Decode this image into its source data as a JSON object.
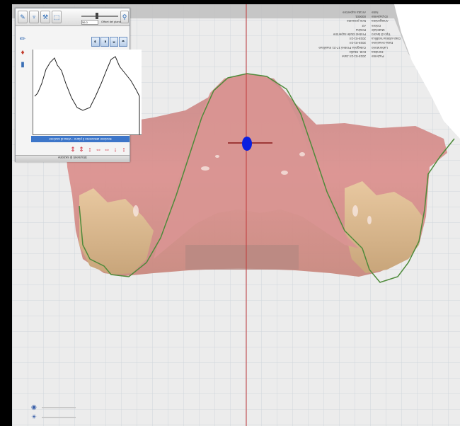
{
  "app": {
    "view": "3d-viewport",
    "colors": {
      "background": "#ececec",
      "grid": "#cfd6dc",
      "axis": "#c0393a",
      "gum": "#d98a88",
      "margin_line": "#4e8a3a",
      "marker": "#0a1fe0",
      "accent": "#3d76c9"
    }
  },
  "info_panel": {
    "rows": [
      {
        "k": "Paziente",
        "v": "2015-01-24 Jane"
      },
      {
        "k": "Dentista",
        "v": "Dott. Studio"
      },
      {
        "k": "Laboratorio",
        "v": "Categoria Protesi 17-21 maxillare"
      },
      {
        "k": "Data creazione",
        "v": "2015-01-24"
      },
      {
        "k": "Data ultima modifica",
        "v": "2015-01-24"
      },
      {
        "k": "Tipo di lavoro",
        "v": "Protesi totale superiore"
      },
      {
        "k": "Materiale",
        "v": "Resina"
      },
      {
        "k": "Colore",
        "v": "A2"
      },
      {
        "k": "Antagonista",
        "v": "Non presente"
      },
      {
        "k": "ID paziente",
        "v": "000001"
      },
      {
        "k": "Note",
        "v": "Arcata superiore"
      }
    ]
  },
  "tool_panel": {
    "top_buttons": [
      {
        "name": "measure-tool-icon",
        "glyph": "✎"
      },
      {
        "name": "tooth-tool-icon",
        "glyph": "♆"
      },
      {
        "name": "knife-tool-icon",
        "glyph": "⚒"
      },
      {
        "name": "shape-tool-icon",
        "glyph": "⬚"
      },
      {
        "name": "figure-tool-icon",
        "glyph": "⚲"
      }
    ],
    "slider": {
      "value": "56.0",
      "label": "Offset del piano",
      "position": 0.42
    },
    "mode_buttons": [
      {
        "name": "mode-front-icon",
        "glyph": "◐"
      },
      {
        "name": "mode-side-icon",
        "glyph": "◑"
      },
      {
        "name": "mode-top-icon",
        "glyph": "◒"
      },
      {
        "name": "mode-bottom-icon",
        "glyph": "◓"
      }
    ],
    "side_tools": [
      {
        "name": "pencil-icon",
        "glyph": "✏"
      },
      {
        "name": "brush-icon",
        "glyph": "♦"
      },
      {
        "name": "eraser-icon",
        "glyph": "▮"
      }
    ],
    "section_label": "Sezione attraverso il piano - Vista di sezione",
    "bottom_tools": [
      "⇕",
      "⇕",
      "↕",
      "⇔",
      "⇔",
      "↓",
      "↕"
    ],
    "panel_title": "Strumenti di sezione"
  },
  "bottom_indicators": [
    {
      "name": "camera-icon",
      "glyph": "◉"
    },
    {
      "name": "light-icon",
      "glyph": "☀"
    }
  ]
}
